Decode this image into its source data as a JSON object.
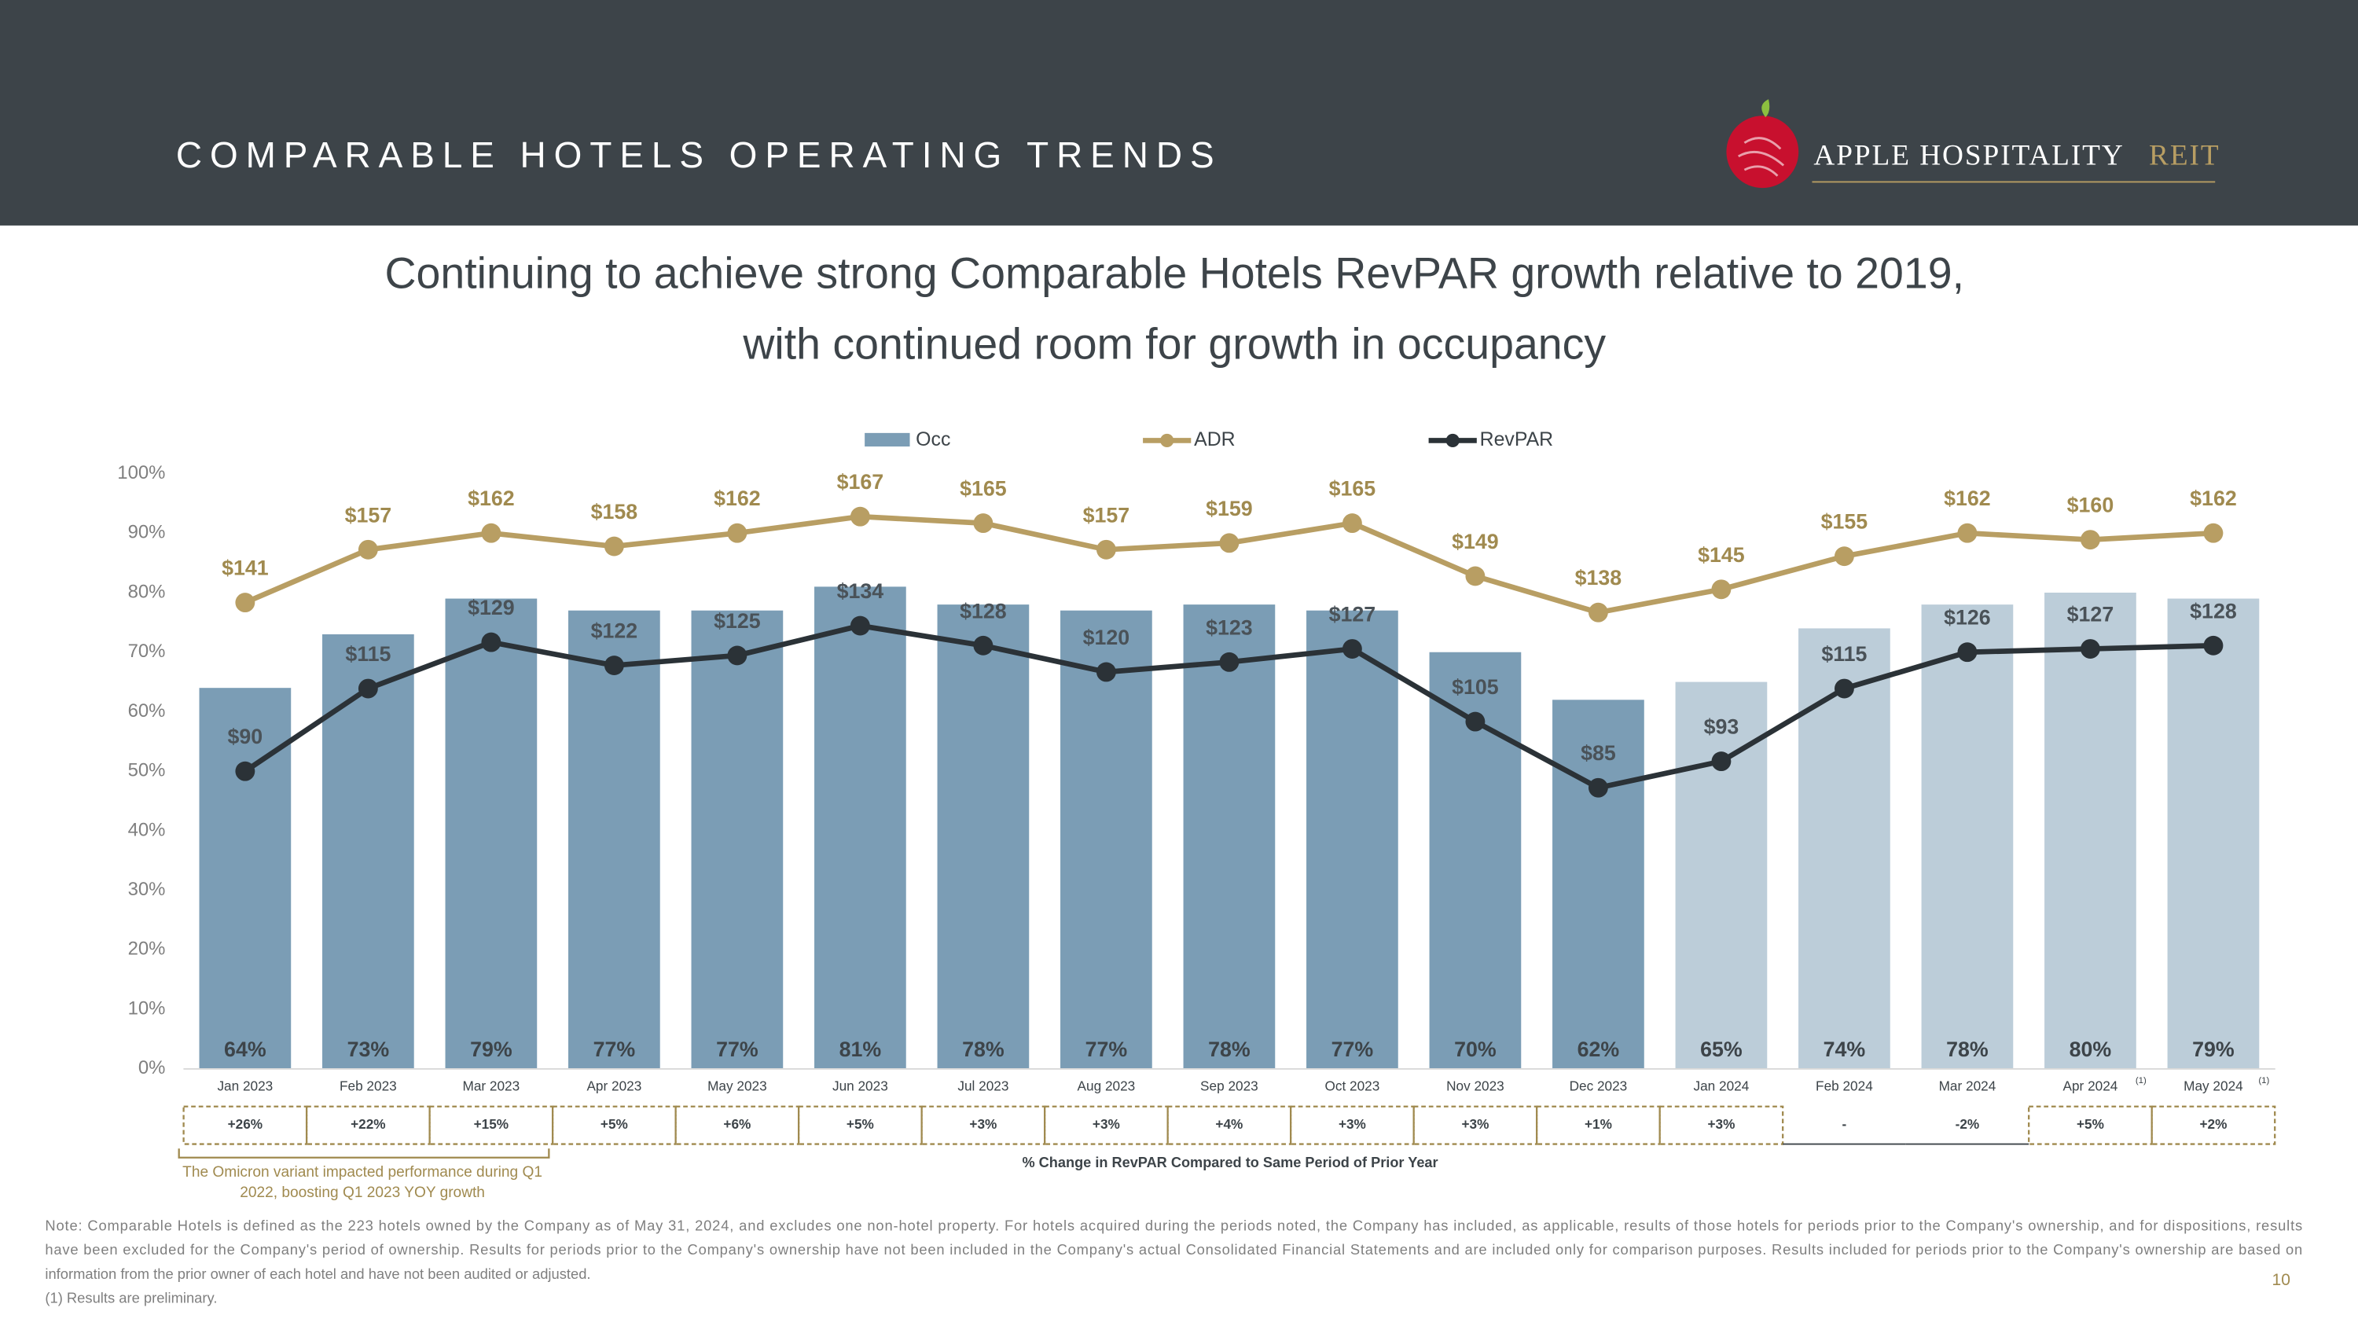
{
  "header": {
    "title": "COMPARABLE HOTELS OPERATING TRENDS",
    "logo_name": "APPLE HOSPITALITY",
    "logo_suffix": "REIT"
  },
  "chart_data": {
    "type": "bar_line",
    "title_lines": [
      "Continuing to achieve strong Comparable Hotels RevPAR growth relative to 2019,",
      "with continued room for growth in occupancy"
    ],
    "categories": [
      "Jan 2023",
      "Feb 2023",
      "Mar 2023",
      "Apr 2023",
      "May 2023",
      "Jun 2023",
      "Jul 2023",
      "Aug 2023",
      "Sep 2023",
      "Oct 2023",
      "Nov 2023",
      "Dec 2023",
      "Jan 2024",
      "Feb 2024",
      "Mar 2024",
      "Apr 2024",
      "May 2024"
    ],
    "category_notes": [
      null,
      null,
      null,
      null,
      null,
      null,
      null,
      null,
      null,
      null,
      null,
      null,
      null,
      null,
      null,
      "(1)",
      "(1)"
    ],
    "ylim": [
      0,
      100
    ],
    "yticks": [
      {
        "value": 0,
        "label": "0%"
      },
      {
        "value": 10,
        "label": "10%"
      },
      {
        "value": 20,
        "label": "20%"
      },
      {
        "value": 30,
        "label": "30%"
      },
      {
        "value": 40,
        "label": "40%"
      },
      {
        "value": 50,
        "label": "50%"
      },
      {
        "value": 60,
        "label": "60%"
      },
      {
        "value": 70,
        "label": "70%"
      },
      {
        "value": 80,
        "label": "80%"
      },
      {
        "value": 90,
        "label": "90%"
      },
      {
        "value": 100,
        "label": "100%"
      }
    ],
    "y2lim": [
      0,
      180
    ],
    "series": [
      {
        "name": "Occ",
        "type": "bar",
        "color": "#7b9db5",
        "colors": [
          "#7b9db5",
          "#7b9db5",
          "#7b9db5",
          "#7b9db5",
          "#7b9db5",
          "#7b9db5",
          "#7b9db5",
          "#7b9db5",
          "#7b9db5",
          "#7b9db5",
          "#7b9db5",
          "#7b9db5",
          "#bccdd9",
          "#bccdd9",
          "#bccdd9",
          "#bccdd9",
          "#bccdd9"
        ],
        "values": [
          64,
          73,
          79,
          77,
          77,
          81,
          78,
          77,
          78,
          77,
          70,
          62,
          65,
          74,
          78,
          80,
          79
        ],
        "value_labels": [
          "64%",
          "73%",
          "79%",
          "77%",
          "77%",
          "81%",
          "78%",
          "77%",
          "78%",
          "77%",
          "70%",
          "62%",
          "65%",
          "74%",
          "78%",
          "80%",
          "79%"
        ]
      },
      {
        "name": "ADR",
        "type": "line",
        "axis": "y2",
        "color": "#b89e63",
        "label_color": "#a08a4f",
        "values": [
          141,
          157,
          162,
          158,
          162,
          167,
          165,
          157,
          159,
          165,
          149,
          138,
          145,
          155,
          162,
          160,
          162
        ],
        "value_labels": [
          "$141",
          "$157",
          "$162",
          "$158",
          "$162",
          "$167",
          "$165",
          "$157",
          "$159",
          "$165",
          "$149",
          "$138",
          "$145",
          "$155",
          "$162",
          "$160",
          "$162"
        ]
      },
      {
        "name": "RevPAR",
        "type": "line",
        "axis": "y2",
        "color": "#2b3237",
        "label_color": "#4a5258",
        "values": [
          90,
          115,
          129,
          122,
          125,
          134,
          128,
          120,
          123,
          127,
          105,
          85,
          93,
          115,
          126,
          127,
          128
        ],
        "value_labels": [
          "$90",
          "$115",
          "$129",
          "$122",
          "$125",
          "$134",
          "$128",
          "$120",
          "$123",
          "$127",
          "$105",
          "$85",
          "$93",
          "$115",
          "$126",
          "$127",
          "$128"
        ]
      }
    ],
    "change_row": {
      "caption": "% Change in RevPAR Compared to Same Period of Prior Year",
      "labels": [
        "+26%",
        "+22%",
        "+15%",
        "+5%",
        "+6%",
        "+5%",
        "+3%",
        "+3%",
        "+4%",
        "+3%",
        "+3%",
        "+1%",
        "+3%",
        "-",
        "-2%",
        "+5%",
        "+2%"
      ],
      "boxed": [
        true,
        true,
        true,
        true,
        true,
        true,
        true,
        true,
        true,
        true,
        true,
        true,
        true,
        false,
        false,
        true,
        true
      ]
    },
    "annotation": "The Omicron variant impacted performance during Q1 2022, boosting Q1 2023 YOY growth",
    "annotation_lines": [
      "The Omicron variant impacted performance during Q1",
      "2022, boosting Q1 2023 YOY growth"
    ]
  },
  "footer": {
    "note_lines": [
      "Note: Comparable Hotels is defined as the 223 hotels owned by the Company as of May 31, 2024, and excludes one non-hotel property. For hotels acquired during the periods noted, the Company has included, as applicable, results of those hotels for periods prior to the Company's ownership, and for dispositions, results",
      "have been excluded for the Company's period of ownership. Results for periods prior to the Company's ownership have not been included in the Company's actual Consolidated Financial Statements and are included only for comparison purposes. Results included for periods prior to the Company's ownership are based on",
      "information from the prior owner of each hotel and have not been audited or adjusted.",
      "(1) Results are preliminary."
    ],
    "page_number": "10"
  }
}
